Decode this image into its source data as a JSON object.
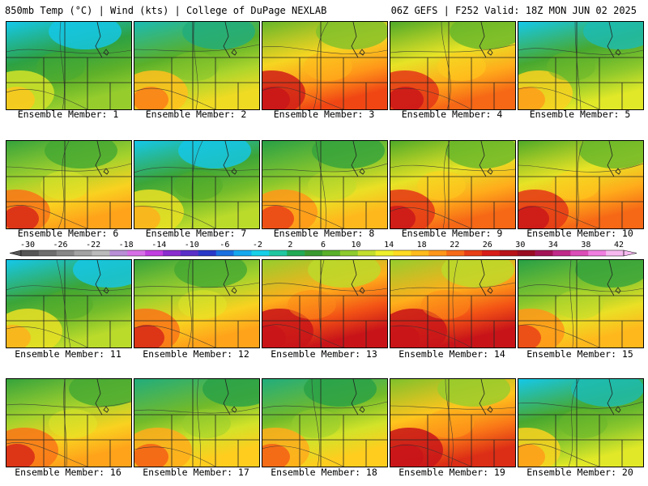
{
  "header": {
    "left": "850mb Temp (°C) | Wind (kts) | College of DuPage NEXLAB",
    "right": "06Z GEFS | F252 Valid: 18Z MON JUN 02 2025"
  },
  "member_label_prefix": "Ensemble Member: ",
  "members": [
    {
      "id": "1",
      "warmth": 0.25
    },
    {
      "id": "2",
      "warmth": 0.4
    },
    {
      "id": "3",
      "warmth": 0.7
    },
    {
      "id": "4",
      "warmth": 0.65
    },
    {
      "id": "5",
      "warmth": 0.35
    },
    {
      "id": "6",
      "warmth": 0.55
    },
    {
      "id": "7",
      "warmth": 0.3
    },
    {
      "id": "8",
      "warmth": 0.5
    },
    {
      "id": "9",
      "warmth": 0.65
    },
    {
      "id": "10",
      "warmth": 0.65
    },
    {
      "id": "11",
      "warmth": 0.3
    },
    {
      "id": "12",
      "warmth": 0.55
    },
    {
      "id": "13",
      "warmth": 0.8
    },
    {
      "id": "14",
      "warmth": 0.8
    },
    {
      "id": "15",
      "warmth": 0.5
    },
    {
      "id": "16",
      "warmth": 0.55
    },
    {
      "id": "17",
      "warmth": 0.45
    },
    {
      "id": "18",
      "warmth": 0.45
    },
    {
      "id": "19",
      "warmth": 0.75
    },
    {
      "id": "20",
      "warmth": 0.35
    }
  ],
  "colorbar": {
    "ticks": [
      "-30",
      "-26",
      "-22",
      "-18",
      "-14",
      "-10",
      "-6",
      "-2",
      "2",
      "6",
      "10",
      "14",
      "18",
      "22",
      "26",
      "30",
      "34",
      "38",
      "42"
    ],
    "colors": [
      "#555555",
      "#6e6e6e",
      "#888888",
      "#a3a3a3",
      "#bbbbbb",
      "#b98fd6",
      "#d86fe8",
      "#c23ee0",
      "#8a2ccf",
      "#5a2fc8",
      "#2a38c8",
      "#1a70e0",
      "#14a8ef",
      "#16d0e8",
      "#20c8a0",
      "#22aa55",
      "#3a9a30",
      "#59b02a",
      "#8ecb2e",
      "#c4de2e",
      "#eef02a",
      "#ffdb22",
      "#ffba1c",
      "#ff961a",
      "#f76b18",
      "#e83f16",
      "#d81d18",
      "#b81218",
      "#9a0c22",
      "#a31456",
      "#c12a8a",
      "#dc4cb8",
      "#f17ee0",
      "#f7b8f0"
    ]
  }
}
